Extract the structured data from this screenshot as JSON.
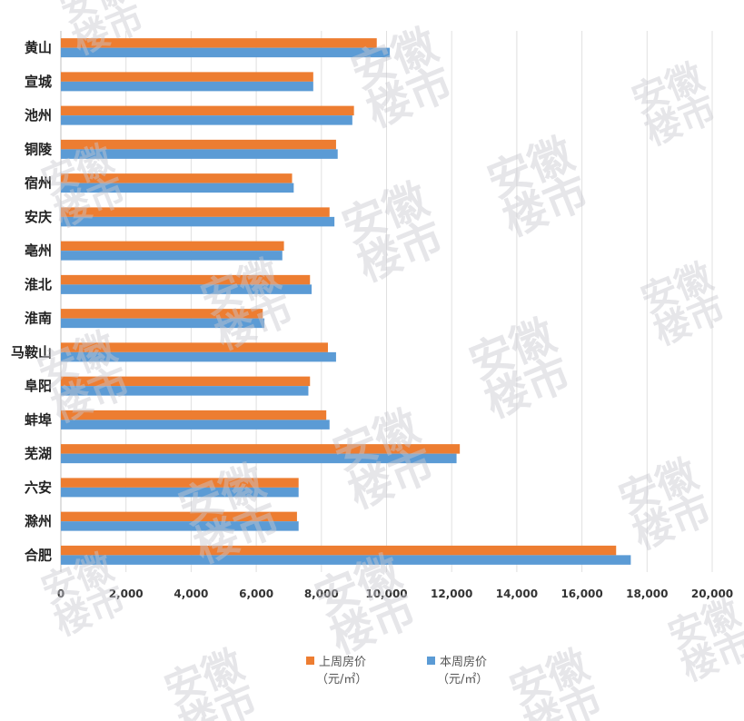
{
  "chart_data": {
    "type": "bar",
    "orientation": "horizontal",
    "categories": [
      "黄山",
      "宣城",
      "池州",
      "铜陵",
      "宿州",
      "安庆",
      "亳州",
      "淮北",
      "淮南",
      "马鞍山",
      "阜阳",
      "蚌埠",
      "芜湖",
      "六安",
      "滁州",
      "合肥"
    ],
    "series": [
      {
        "name": "上周房价",
        "unit": "（元/㎡）",
        "color": "#ed7d31",
        "values": [
          9700,
          7750,
          9000,
          8450,
          7100,
          8250,
          6850,
          7650,
          6200,
          8200,
          7650,
          8150,
          12250,
          7300,
          7250,
          17050
        ]
      },
      {
        "name": "本周房价",
        "unit": "（元/㎡）",
        "color": "#5b9bd5",
        "values": [
          10100,
          7750,
          8950,
          8500,
          7150,
          8400,
          6800,
          7700,
          6250,
          8450,
          7600,
          8250,
          12150,
          7300,
          7300,
          17500
        ]
      }
    ],
    "xlim": [
      0,
      20000
    ],
    "xticks": [
      0,
      2000,
      4000,
      6000,
      8000,
      10000,
      12000,
      14000,
      16000,
      18000,
      20000
    ],
    "xtick_labels": [
      "0",
      "2,000",
      "4,000",
      "6,000",
      "8,000",
      "10,000",
      "12,000",
      "14,000",
      "16,000",
      "18,000",
      "20,000"
    ],
    "grid": "vertical",
    "legend_position": "bottom"
  },
  "watermark": {
    "line1": "安徽",
    "line2": "楼市"
  }
}
